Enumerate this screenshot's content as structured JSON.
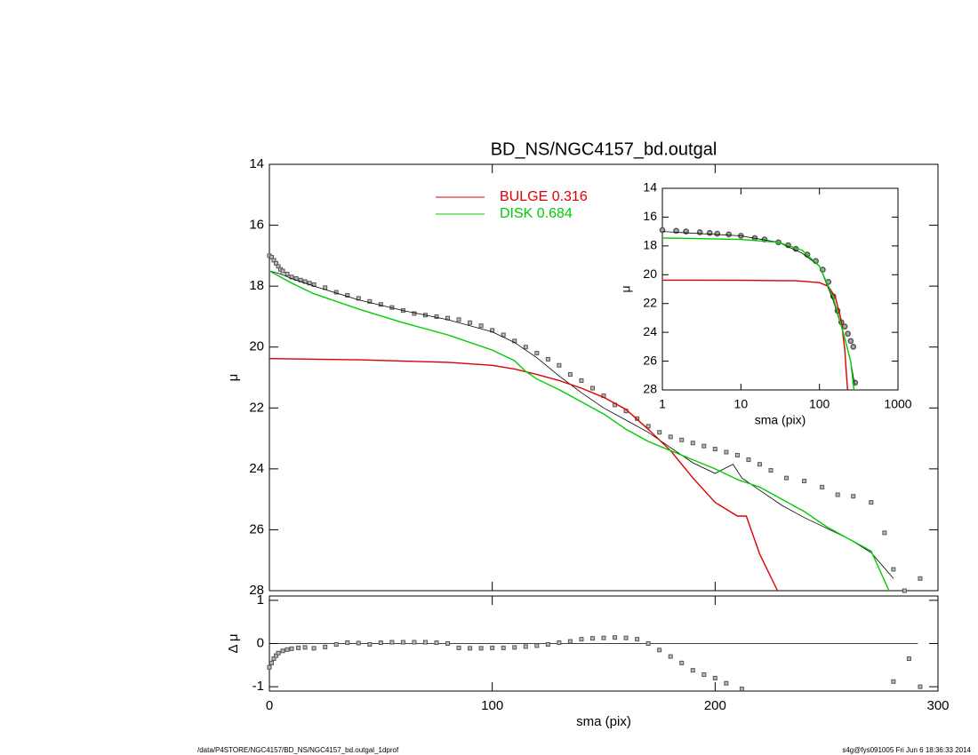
{
  "footer": {
    "left": "/data/P4STORE/NGC4157/BD_NS/NGC4157_bd.outgal_1dprof",
    "right": "s4g@fys091005  Fri Jun  6 18:36:33 2014"
  },
  "chart_data": [
    {
      "type": "line",
      "title": "BD_NS/NGC4157_bd.outgal",
      "ylabel": "μ",
      "xlim": [
        0,
        300
      ],
      "xticks": [
        0,
        100,
        200,
        300
      ],
      "ylim": [
        28,
        14
      ],
      "yticks": [
        14,
        16,
        18,
        20,
        22,
        24,
        26,
        28
      ],
      "legend": "top",
      "series": [
        {
          "style": "markers",
          "color": "#555555",
          "x": [
            0,
            1,
            2,
            3,
            4,
            5,
            6,
            8,
            10,
            12,
            14,
            16,
            18,
            20,
            25,
            30,
            35,
            40,
            45,
            50,
            55,
            60,
            65,
            70,
            75,
            80,
            85,
            90,
            95,
            100,
            105,
            110,
            115,
            120,
            125,
            130,
            135,
            140,
            145,
            150,
            155,
            160,
            165,
            170,
            175,
            180,
            185,
            190,
            195,
            200,
            205,
            210,
            215,
            220,
            225,
            232,
            240,
            248,
            255,
            262,
            270,
            276,
            280,
            285,
            292
          ],
          "values": [
            17.0,
            17.05,
            17.15,
            17.25,
            17.35,
            17.45,
            17.5,
            17.6,
            17.7,
            17.75,
            17.8,
            17.85,
            17.9,
            17.95,
            18.05,
            18.2,
            18.3,
            18.4,
            18.5,
            18.6,
            18.7,
            18.8,
            18.9,
            18.95,
            19.0,
            19.05,
            19.1,
            19.2,
            19.3,
            19.45,
            19.6,
            19.8,
            20.0,
            20.2,
            20.4,
            20.6,
            20.9,
            21.1,
            21.35,
            21.6,
            21.9,
            22.1,
            22.35,
            22.6,
            22.8,
            22.95,
            23.05,
            23.15,
            23.25,
            23.35,
            23.45,
            23.55,
            23.7,
            23.85,
            24.05,
            24.3,
            24.4,
            24.6,
            24.85,
            24.9,
            25.1,
            26.1,
            27.3,
            28.0,
            27.6
          ]
        },
        {
          "style": "line",
          "color": "#000000",
          "x": [
            0,
            5,
            10,
            20,
            40,
            60,
            80,
            100,
            110,
            120,
            130,
            140,
            150,
            160,
            170,
            180,
            190,
            200,
            208,
            212,
            220,
            230,
            240,
            250,
            260,
            270,
            280
          ],
          "values": [
            17.5,
            17.6,
            17.75,
            18.0,
            18.45,
            18.8,
            19.1,
            19.5,
            19.85,
            20.35,
            20.95,
            21.5,
            22.0,
            22.4,
            22.8,
            23.3,
            23.8,
            24.15,
            23.85,
            24.3,
            24.7,
            25.2,
            25.6,
            25.95,
            26.3,
            26.75,
            27.6
          ]
        },
        {
          "style": "line",
          "name": "BULGE  0.316",
          "color": "#dd0000",
          "x": [
            0,
            40,
            80,
            100,
            110,
            120,
            130,
            140,
            150,
            160,
            170,
            180,
            190,
            200,
            210,
            214,
            220,
            228
          ],
          "values": [
            20.38,
            20.42,
            20.5,
            20.6,
            20.72,
            20.9,
            21.1,
            21.35,
            21.65,
            22.05,
            22.7,
            23.4,
            24.3,
            25.1,
            25.55,
            25.55,
            26.8,
            28.0
          ]
        },
        {
          "style": "line",
          "name": "DISK  0.684",
          "color": "#00cc00",
          "x": [
            0,
            10,
            20,
            40,
            60,
            80,
            100,
            110,
            115,
            120,
            130,
            140,
            150,
            160,
            170,
            180,
            190,
            200,
            210,
            220,
            230,
            240,
            250,
            260,
            270,
            278
          ],
          "values": [
            17.5,
            17.9,
            18.25,
            18.75,
            19.2,
            19.6,
            20.1,
            20.45,
            20.8,
            21.05,
            21.4,
            21.8,
            22.2,
            22.7,
            23.1,
            23.4,
            23.7,
            24.0,
            24.35,
            24.6,
            25.0,
            25.4,
            25.9,
            26.3,
            26.7,
            28.0
          ]
        }
      ]
    },
    {
      "type": "line",
      "xlabel": "sma (pix)",
      "ylabel": "Δ μ",
      "xlim": [
        0,
        300
      ],
      "xticks": [
        0,
        100,
        200,
        300
      ],
      "ylim": [
        -1.1,
        1.1
      ],
      "yticks": [
        -1,
        0,
        1
      ],
      "reference_line": 0,
      "series": [
        {
          "style": "markers",
          "color": "#555555",
          "x": [
            0,
            1,
            2,
            3,
            4,
            6,
            8,
            10,
            13,
            16,
            20,
            25,
            30,
            35,
            40,
            45,
            50,
            55,
            60,
            65,
            70,
            75,
            80,
            85,
            90,
            95,
            100,
            105,
            110,
            115,
            120,
            125,
            130,
            135,
            140,
            145,
            150,
            155,
            160,
            165,
            170,
            175,
            180,
            185,
            190,
            195,
            200,
            205,
            212,
            280,
            287,
            292
          ],
          "values": [
            -0.55,
            -0.45,
            -0.35,
            -0.28,
            -0.22,
            -0.17,
            -0.14,
            -0.12,
            -0.1,
            -0.09,
            -0.11,
            -0.08,
            -0.02,
            0.02,
            0.01,
            -0.02,
            0.02,
            0.03,
            0.03,
            0.03,
            0.03,
            0.02,
            0.0,
            -0.1,
            -0.11,
            -0.11,
            -0.1,
            -0.1,
            -0.09,
            -0.07,
            -0.05,
            -0.02,
            0.02,
            0.05,
            0.1,
            0.12,
            0.13,
            0.14,
            0.13,
            0.1,
            0.0,
            -0.15,
            -0.3,
            -0.45,
            -0.62,
            -0.72,
            -0.8,
            -0.92,
            -1.05,
            -0.88,
            -0.35,
            -1.0
          ]
        }
      ]
    },
    {
      "type": "line",
      "xlabel": "sma (pix)",
      "ylabel": "μ",
      "xlog": true,
      "xlim": [
        1,
        1000
      ],
      "xticks": [
        1,
        10,
        100,
        1000
      ],
      "ylim": [
        28,
        14
      ],
      "yticks": [
        14,
        16,
        18,
        20,
        22,
        24,
        26,
        28
      ],
      "series": [
        {
          "style": "circles",
          "color": "#555555",
          "x": [
            1,
            1.5,
            2,
            3,
            4,
            5,
            7,
            10,
            15,
            20,
            30,
            40,
            50,
            70,
            90,
            110,
            130,
            150,
            170,
            190,
            210,
            230,
            250,
            270,
            285
          ],
          "values": [
            16.9,
            16.95,
            17.0,
            17.05,
            17.1,
            17.15,
            17.2,
            17.3,
            17.45,
            17.55,
            17.75,
            17.95,
            18.2,
            18.6,
            19.05,
            19.65,
            20.5,
            21.5,
            22.5,
            23.3,
            23.6,
            24.1,
            24.6,
            25.0,
            27.5
          ]
        },
        {
          "style": "line",
          "color": "#000000",
          "x": [
            1,
            10,
            30,
            60,
            100,
            150,
            200,
            250,
            280
          ],
          "values": [
            17.0,
            17.3,
            17.75,
            18.5,
            19.4,
            21.8,
            24.0,
            26.0,
            27.6
          ]
        },
        {
          "style": "line",
          "color": "#dd0000",
          "x": [
            1,
            10,
            50,
            100,
            130,
            160,
            190,
            210,
            228
          ],
          "values": [
            20.38,
            20.39,
            20.42,
            20.55,
            20.8,
            21.6,
            23.2,
            25.2,
            28.0
          ]
        },
        {
          "style": "line",
          "color": "#00cc00",
          "x": [
            1,
            10,
            30,
            60,
            100,
            150,
            200,
            250,
            275
          ],
          "values": [
            17.45,
            17.55,
            17.75,
            18.3,
            19.4,
            21.6,
            24.0,
            26.0,
            28.0
          ]
        }
      ]
    }
  ]
}
